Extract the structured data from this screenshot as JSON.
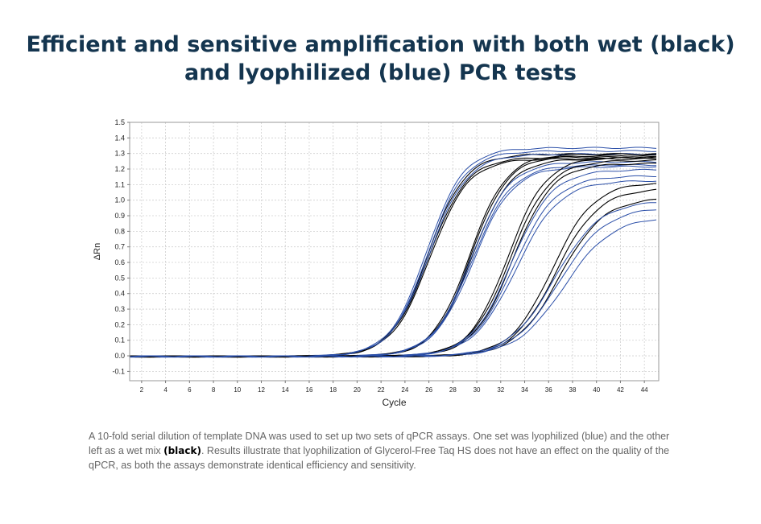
{
  "title": {
    "line1": "Efficient and sensitive amplification with both wet (black)",
    "line2": "and lyophilized (blue) PCR tests"
  },
  "caption": {
    "part1": "A 10-fold serial dilution of template DNA was used to set up two sets of qPCR assays. One set was lyophilized (blue) and the other left as a wet mix ",
    "bold": "(black)",
    "part2": ". Results illustrate that lyophilization of Glycerol-Free Taq HS does not have an effect on the quality of the qPCR, as both the assays demonstrate identical efficiency and sensitivity."
  },
  "colors": {
    "wet": "#000000",
    "lyophilized": "#2b4fa8",
    "grid": "#cfcfcf",
    "title": "#14354f",
    "caption": "#666666"
  },
  "chart_data": {
    "type": "line",
    "xlabel": "Cycle",
    "ylabel": "ΔRn",
    "xlim": [
      1,
      45.2
    ],
    "ylim": [
      -0.16,
      1.5
    ],
    "xticks": [
      2,
      4,
      6,
      8,
      10,
      12,
      14,
      16,
      18,
      20,
      22,
      24,
      26,
      28,
      30,
      32,
      34,
      36,
      38,
      40,
      42,
      44
    ],
    "yticks": [
      -0.1,
      0.0,
      0.1,
      0.2,
      0.3,
      0.4,
      0.5,
      0.6,
      0.7,
      0.8,
      0.9,
      1.0,
      1.1,
      1.2,
      1.3,
      1.4,
      1.5
    ],
    "ytick_labels": [
      "-0.1",
      "0.0",
      "0.1",
      "0.2",
      "0.3",
      "0.4",
      "0.5",
      "0.6",
      "0.7",
      "0.8",
      "0.9",
      "1.0",
      "1.1",
      "1.2",
      "1.3",
      "1.4",
      "1.5"
    ],
    "grid": true,
    "legend": "none",
    "series_model": "sigmoid: dRn = max / (1 + exp(-(cycle - midpoint) / slope))",
    "series": [
      {
        "group": "wet",
        "midpoint": 25.9,
        "max": 1.3,
        "slope": 1.55
      },
      {
        "group": "wet",
        "midpoint": 26.0,
        "max": 1.28,
        "slope": 1.6
      },
      {
        "group": "wet",
        "midpoint": 26.1,
        "max": 1.27,
        "slope": 1.6
      },
      {
        "group": "lyophilized",
        "midpoint": 25.8,
        "max": 1.34,
        "slope": 1.55
      },
      {
        "group": "lyophilized",
        "midpoint": 25.9,
        "max": 1.32,
        "slope": 1.55
      },
      {
        "group": "lyophilized",
        "midpoint": 26.0,
        "max": 1.3,
        "slope": 1.6
      },
      {
        "group": "wet",
        "midpoint": 29.4,
        "max": 1.3,
        "slope": 1.55
      },
      {
        "group": "wet",
        "midpoint": 29.5,
        "max": 1.29,
        "slope": 1.55
      },
      {
        "group": "wet",
        "midpoint": 29.6,
        "max": 1.27,
        "slope": 1.6
      },
      {
        "group": "lyophilized",
        "midpoint": 29.5,
        "max": 1.25,
        "slope": 1.6
      },
      {
        "group": "lyophilized",
        "midpoint": 29.6,
        "max": 1.23,
        "slope": 1.65
      },
      {
        "group": "lyophilized",
        "midpoint": 29.7,
        "max": 1.22,
        "slope": 1.65
      },
      {
        "group": "wet",
        "midpoint": 32.6,
        "max": 1.28,
        "slope": 1.6
      },
      {
        "group": "wet",
        "midpoint": 32.8,
        "max": 1.26,
        "slope": 1.65
      },
      {
        "group": "wet",
        "midpoint": 33.0,
        "max": 1.24,
        "slope": 1.65
      },
      {
        "group": "lyophilized",
        "midpoint": 32.9,
        "max": 1.2,
        "slope": 1.7
      },
      {
        "group": "lyophilized",
        "midpoint": 33.1,
        "max": 1.16,
        "slope": 1.75
      },
      {
        "group": "lyophilized",
        "midpoint": 33.3,
        "max": 1.13,
        "slope": 1.8
      },
      {
        "group": "wet",
        "midpoint": 36.3,
        "max": 1.12,
        "slope": 1.75
      },
      {
        "group": "wet",
        "midpoint": 36.6,
        "max": 1.08,
        "slope": 1.8
      },
      {
        "group": "wet",
        "midpoint": 36.9,
        "max": 1.02,
        "slope": 1.85
      },
      {
        "group": "lyophilized",
        "midpoint": 36.5,
        "max": 1.0,
        "slope": 1.9
      },
      {
        "group": "lyophilized",
        "midpoint": 36.9,
        "max": 0.96,
        "slope": 1.95
      },
      {
        "group": "lyophilized",
        "midpoint": 37.3,
        "max": 0.9,
        "slope": 2.0
      }
    ]
  }
}
